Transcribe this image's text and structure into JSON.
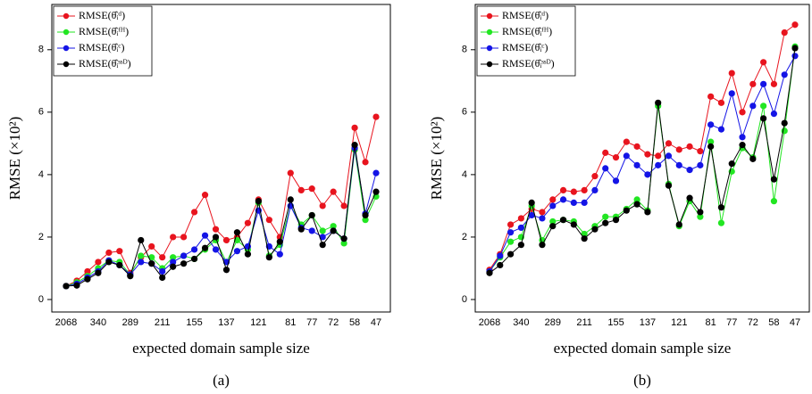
{
  "chart_data": [
    {
      "type": "line",
      "caption": "(a)",
      "xlabel": "expected domain sample size",
      "ylabel": "RMSE (×10²)",
      "categories": [
        "2068",
        null,
        null,
        "340",
        null,
        null,
        "289",
        null,
        null,
        "211",
        null,
        null,
        "155",
        null,
        null,
        "137",
        null,
        null,
        "121",
        null,
        null,
        "81",
        null,
        "77",
        null,
        "72",
        null,
        "58",
        null,
        "47"
      ],
      "ylim": [
        -0.4,
        9.45
      ],
      "yticks": [
        0,
        2,
        4,
        6,
        8
      ],
      "legend": "upper left",
      "series": [
        {
          "name": "RMSE(θ̂ᵢᵈ)",
          "color": "#e8141e",
          "values": [
            0.43,
            0.6,
            0.9,
            1.2,
            1.5,
            1.55,
            0.85,
            1.35,
            1.7,
            1.35,
            2.0,
            2.0,
            2.8,
            3.35,
            2.25,
            1.9,
            2.0,
            2.45,
            3.2,
            2.55,
            2.0,
            4.05,
            3.5,
            3.55,
            3.0,
            3.45,
            3.0,
            5.5,
            4.4,
            5.85
          ]
        },
        {
          "name": "RMSE(θ̂ᵢᶠᴴ)",
          "color": "#22e622",
          "values": [
            0.43,
            0.55,
            0.75,
            1.0,
            1.25,
            1.2,
            0.8,
            1.4,
            1.35,
            1.0,
            1.35,
            1.4,
            1.3,
            1.6,
            1.9,
            1.2,
            1.9,
            1.6,
            3.1,
            1.4,
            1.75,
            3.0,
            2.4,
            2.7,
            2.2,
            2.35,
            1.8,
            4.8,
            2.55,
            3.3
          ]
        },
        {
          "name": "RMSE(θ̂ᵢᶜ)",
          "color": "#1414e6",
          "values": [
            0.43,
            0.5,
            0.7,
            0.9,
            1.25,
            1.1,
            0.8,
            1.2,
            1.15,
            0.9,
            1.2,
            1.4,
            1.6,
            2.05,
            1.6,
            1.2,
            1.55,
            1.7,
            2.85,
            1.7,
            1.45,
            3.0,
            2.3,
            2.2,
            2.0,
            2.2,
            1.95,
            4.85,
            2.75,
            4.05
          ]
        },
        {
          "name": "RMSE(θ̂ᵢˢˢᴰ)",
          "color": "#000000",
          "values": [
            0.43,
            0.45,
            0.65,
            0.85,
            1.2,
            1.1,
            0.75,
            1.9,
            1.15,
            0.7,
            1.05,
            1.15,
            1.3,
            1.65,
            2.0,
            0.95,
            2.15,
            1.45,
            3.15,
            1.35,
            1.85,
            3.2,
            2.25,
            2.7,
            1.75,
            2.2,
            1.95,
            4.95,
            2.7,
            3.45
          ]
        }
      ]
    },
    {
      "type": "line",
      "caption": "(b)",
      "xlabel": "expected domain sample size",
      "ylabel": "RMSE (×10²)",
      "categories": [
        "2068",
        null,
        null,
        "340",
        null,
        null,
        "289",
        null,
        null,
        "211",
        null,
        null,
        "155",
        null,
        null,
        "137",
        null,
        null,
        "121",
        null,
        null,
        "81",
        null,
        "77",
        null,
        "72",
        null,
        "58",
        null,
        "47"
      ],
      "ylim": [
        -0.4,
        9.45
      ],
      "yticks": [
        0,
        2,
        4,
        6,
        8
      ],
      "legend": "upper left",
      "series": [
        {
          "name": "RMSE(θ̂ᵢᵈ)",
          "color": "#e8141e",
          "values": [
            0.95,
            1.45,
            2.4,
            2.6,
            2.9,
            2.8,
            3.2,
            3.5,
            3.45,
            3.5,
            3.95,
            4.7,
            4.55,
            5.05,
            4.9,
            4.65,
            4.6,
            5.0,
            4.8,
            4.9,
            4.75,
            6.5,
            6.3,
            7.25,
            6.0,
            6.9,
            7.6,
            6.9,
            8.55,
            8.8
          ]
        },
        {
          "name": "RMSE(θ̂ᵢᶠᴴ)",
          "color": "#22e622",
          "values": [
            0.9,
            1.35,
            1.85,
            2.0,
            3.0,
            1.9,
            2.5,
            2.55,
            2.5,
            2.1,
            2.35,
            2.65,
            2.65,
            2.9,
            3.2,
            2.85,
            6.2,
            3.7,
            2.35,
            3.15,
            2.65,
            5.05,
            2.45,
            4.1,
            4.85,
            4.55,
            6.2,
            3.15,
            5.4,
            8.1
          ]
        },
        {
          "name": "RMSE(θ̂ᵢᶜ)",
          "color": "#1414e6",
          "values": [
            0.9,
            1.4,
            2.15,
            2.3,
            2.7,
            2.6,
            3.0,
            3.2,
            3.1,
            3.1,
            3.5,
            4.2,
            3.8,
            4.6,
            4.3,
            4.0,
            4.3,
            4.6,
            4.3,
            4.15,
            4.3,
            5.6,
            5.45,
            6.6,
            5.2,
            6.2,
            6.9,
            5.95,
            7.2,
            7.8
          ]
        },
        {
          "name": "RMSE(θ̂ᵢˢˢᴰ)",
          "color": "#000000",
          "values": [
            0.85,
            1.1,
            1.45,
            1.75,
            3.1,
            1.75,
            2.35,
            2.55,
            2.4,
            1.95,
            2.25,
            2.45,
            2.55,
            2.85,
            3.05,
            2.8,
            6.3,
            3.65,
            2.4,
            3.25,
            2.8,
            4.9,
            2.95,
            4.35,
            4.95,
            4.5,
            5.8,
            3.85,
            5.65,
            8.05
          ]
        }
      ]
    }
  ]
}
